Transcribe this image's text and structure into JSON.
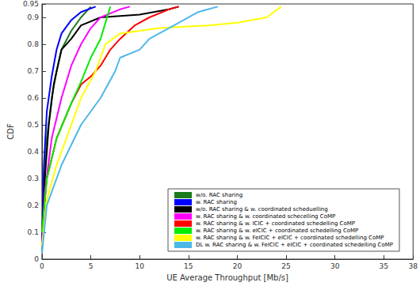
{
  "chart_data": {
    "type": "line",
    "x_label": "UE Average Throughput [Mb/s]",
    "y_label": "CDF",
    "xlim": [
      0,
      38
    ],
    "xticks": [
      0,
      5,
      10,
      15,
      20,
      25,
      30,
      35
    ],
    "ylim": [
      0,
      0.95
    ],
    "yticks": [
      0,
      0.1,
      0.2,
      0.3,
      0.4,
      0.5,
      0.6,
      0.7,
      0.8,
      0.9
    ],
    "grid": false,
    "legend": "lower right",
    "marker": "none",
    "series": [
      {
        "name": "w/o. RAC sharing",
        "color": "#1a7a1a",
        "values": [
          [
            0,
            0.05
          ],
          [
            0.2,
            0.3
          ],
          [
            0.5,
            0.45
          ],
          [
            1,
            0.6
          ],
          [
            1.5,
            0.7
          ],
          [
            2,
            0.78
          ],
          [
            3,
            0.85
          ],
          [
            4,
            0.9
          ],
          [
            5,
            0.94
          ]
        ]
      },
      {
        "name": "w. RAC sharing",
        "color": "#0000ff",
        "values": [
          [
            0,
            0.05
          ],
          [
            0.2,
            0.35
          ],
          [
            0.5,
            0.55
          ],
          [
            1,
            0.68
          ],
          [
            1.5,
            0.78
          ],
          [
            2,
            0.84
          ],
          [
            3,
            0.89
          ],
          [
            4,
            0.92
          ],
          [
            5.5,
            0.94
          ]
        ]
      },
      {
        "name": "w/o. RAC sharing & w. coordinated scheduelling",
        "color": "#000000",
        "values": [
          [
            0,
            0.05
          ],
          [
            0.3,
            0.3
          ],
          [
            0.7,
            0.5
          ],
          [
            1.2,
            0.65
          ],
          [
            2,
            0.78
          ],
          [
            3,
            0.82
          ],
          [
            4,
            0.87
          ],
          [
            6,
            0.9
          ],
          [
            10,
            0.91
          ],
          [
            13,
            0.93
          ],
          [
            14,
            0.94
          ]
        ]
      },
      {
        "name": "w. RAC sharing & w. coordinated schecelling CoMP",
        "color": "#ff00ff",
        "values": [
          [
            0,
            0.05
          ],
          [
            0.3,
            0.25
          ],
          [
            1,
            0.45
          ],
          [
            2,
            0.6
          ],
          [
            3,
            0.72
          ],
          [
            4,
            0.8
          ],
          [
            5,
            0.86
          ],
          [
            6,
            0.9
          ],
          [
            8,
            0.93
          ],
          [
            9,
            0.94
          ]
        ]
      },
      {
        "name": "w. RAC sharing & w. ICIC + coordinated schedelling CoMP",
        "color": "#ff0000",
        "values": [
          [
            0,
            0.1
          ],
          [
            0.5,
            0.3
          ],
          [
            1.5,
            0.45
          ],
          [
            3,
            0.58
          ],
          [
            4,
            0.65
          ],
          [
            5,
            0.68
          ],
          [
            6,
            0.72
          ],
          [
            7,
            0.78
          ],
          [
            8,
            0.82
          ],
          [
            9.5,
            0.87
          ],
          [
            11,
            0.9
          ],
          [
            13,
            0.93
          ],
          [
            14,
            0.94
          ]
        ]
      },
      {
        "name": "w. RAC sharing & w. eICIC + coordinated schedelling CoMP",
        "color": "#00ee00",
        "values": [
          [
            0,
            0.1
          ],
          [
            0.5,
            0.3
          ],
          [
            1.5,
            0.45
          ],
          [
            3,
            0.58
          ],
          [
            4,
            0.66
          ],
          [
            5,
            0.75
          ],
          [
            6,
            0.82
          ],
          [
            6.5,
            0.88
          ],
          [
            7,
            0.94
          ]
        ]
      },
      {
        "name": "w. RAC sharing & w. FeICIC + eICIC + coordinated schedelling CoMP",
        "color": "#ffff00",
        "values": [
          [
            0,
            0.05
          ],
          [
            0.5,
            0.22
          ],
          [
            1.5,
            0.35
          ],
          [
            3,
            0.5
          ],
          [
            4,
            0.6
          ],
          [
            5.5,
            0.7
          ],
          [
            6.5,
            0.8
          ],
          [
            8,
            0.84
          ],
          [
            12,
            0.86
          ],
          [
            17,
            0.87
          ],
          [
            20,
            0.88
          ],
          [
            23,
            0.9
          ],
          [
            24.5,
            0.94
          ]
        ]
      },
      {
        "name": "DL w. RAC sharing & w. FeICIC + eICIC + coordinated schedelling CoMP",
        "color": "#4db8e8",
        "values": [
          [
            0,
            0.02
          ],
          [
            0.5,
            0.2
          ],
          [
            2,
            0.35
          ],
          [
            4,
            0.5
          ],
          [
            6,
            0.6
          ],
          [
            7.5,
            0.7
          ],
          [
            8,
            0.75
          ],
          [
            10,
            0.78
          ],
          [
            11,
            0.82
          ],
          [
            14,
            0.88
          ],
          [
            16,
            0.92
          ],
          [
            18,
            0.94
          ]
        ]
      }
    ]
  }
}
